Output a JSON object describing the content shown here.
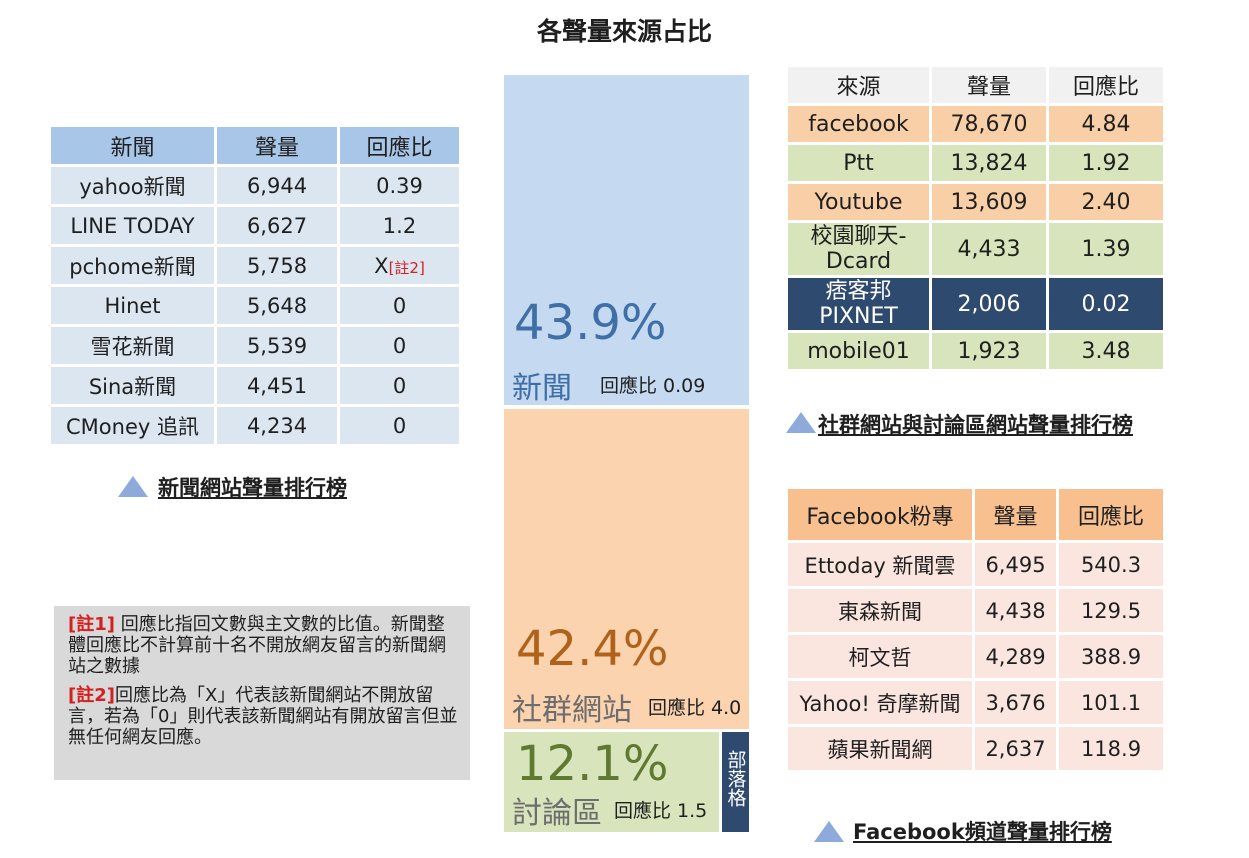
{
  "title": "各聲量來源占比",
  "chart_data": {
    "type": "treemap",
    "title": "各聲量來源占比",
    "segments": [
      {
        "label": "新聞",
        "share": 43.9,
        "share_text": "43.9%",
        "ratio_text": "回應比 0.09",
        "color": "#c5d9f1",
        "text_color": "#3e6fa6"
      },
      {
        "label": "社群網站",
        "share": 42.4,
        "share_text": "42.4%",
        "ratio_text": "回應比 4.0",
        "color": "#fbd3af",
        "text_color": "#b0621a"
      },
      {
        "label": "討論區",
        "share": 12.1,
        "share_text": "12.1%",
        "ratio_text": "回應比 1.5",
        "color": "#d7e4bc",
        "text_color": "#5f7a30"
      },
      {
        "label": "部落格",
        "share": 1.6,
        "color": "#2f4a6f",
        "text_color": "#ffffff"
      }
    ]
  },
  "news_table": {
    "headers": [
      "新聞",
      "聲量",
      "回應比"
    ],
    "rows": [
      {
        "name": "yahoo新聞",
        "volume": "6,944",
        "ratio": "0.39",
        "note": ""
      },
      {
        "name": "LINE TODAY",
        "volume": "6,627",
        "ratio": "1.2",
        "note": ""
      },
      {
        "name": "pchome新聞",
        "volume": "5,758",
        "ratio": "X",
        "note": "[註2]"
      },
      {
        "name": "Hinet",
        "volume": "5,648",
        "ratio": "0",
        "note": ""
      },
      {
        "name": "雪花新聞",
        "volume": "5,539",
        "ratio": "0",
        "note": ""
      },
      {
        "name": "Sina新聞",
        "volume": "4,451",
        "ratio": "0",
        "note": ""
      },
      {
        "name": "CMoney 追訊",
        "volume": "4,234",
        "ratio": "0",
        "note": ""
      }
    ],
    "caption": "新聞網站聲量排行榜"
  },
  "social_table": {
    "headers": [
      "來源",
      "聲量",
      "回應比"
    ],
    "rows": [
      {
        "name": "facebook",
        "volume": "78,670",
        "ratio": "4.84",
        "color": "#f9cfa8"
      },
      {
        "name": "Ptt",
        "volume": "13,824",
        "ratio": "1.92",
        "color": "#d7e4bc"
      },
      {
        "name": "Youtube",
        "volume": "13,609",
        "ratio": "2.40",
        "color": "#f9cfa8"
      },
      {
        "name": "校園聊天-\nDcard",
        "volume": "4,433",
        "ratio": "1.39",
        "color": "#d7e4bc"
      },
      {
        "name": "痞客邦\nPIXNET",
        "volume": "2,006",
        "ratio": "0.02",
        "color": "#2f4a6f"
      },
      {
        "name": "mobile01",
        "volume": "1,923",
        "ratio": "3.48",
        "color": "#d7e4bc"
      }
    ],
    "caption": "社群網站與討論區網站聲量排行榜"
  },
  "fb_table": {
    "headers": [
      "Facebook粉專",
      "聲量",
      "回應比"
    ],
    "rows": [
      {
        "name": "Ettoday 新聞雲",
        "volume": "6,495",
        "ratio": "540.3"
      },
      {
        "name": "東森新聞",
        "volume": "4,438",
        "ratio": "129.5"
      },
      {
        "name": "柯文哲",
        "volume": "4,289",
        "ratio": "388.9"
      },
      {
        "name": "Yahoo! 奇摩新聞",
        "volume": "3,676",
        "ratio": "101.1"
      },
      {
        "name": "蘋果新聞網",
        "volume": "2,637",
        "ratio": "118.9"
      }
    ],
    "caption": "Facebook頻道聲量排行榜"
  },
  "notes": {
    "note1_tag": "[註1]",
    "note1_text": " 回應比指回文數與主文數的比值。新聞整體回應比不計算前十名不開放網友留言的新聞網站之數據",
    "note2_tag": "[註2]",
    "note2_text": "回應比為「X」代表該新聞網站不開放留言，若為「0」則代表該新聞網站有開放留言但並無任何網友回應。"
  }
}
